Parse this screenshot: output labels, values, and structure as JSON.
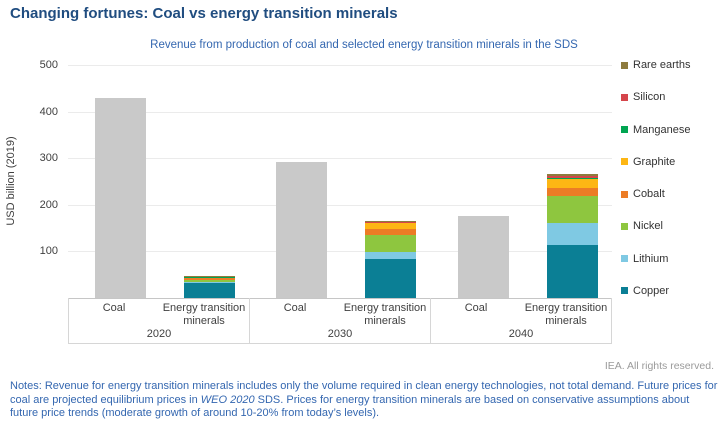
{
  "title": "Changing fortunes: Coal vs energy transition minerals",
  "subtitle": "Revenue from production of coal and selected energy transition minerals in the SDS",
  "y_axis": {
    "label": "USD billion (2019)",
    "ticks": [
      500,
      400,
      300,
      200,
      100
    ]
  },
  "chart_data": {
    "type": "bar",
    "stacked": true,
    "grid": true,
    "legend_position": "right",
    "ylabel": "USD billion (2019)",
    "ylim": [
      0,
      500
    ],
    "groups": [
      "2020",
      "2030",
      "2040"
    ],
    "bar_labels": [
      "Coal",
      "Energy transition minerals"
    ],
    "coal": {
      "name": "Coal",
      "color": "#c9c9c9",
      "values": [
        430,
        292,
        175
      ]
    },
    "series": [
      {
        "name": "Copper",
        "color": "#0b7f95",
        "values": [
          33,
          84,
          113
        ]
      },
      {
        "name": "Lithium",
        "color": "#7fc9e3",
        "values": [
          2,
          15,
          49
        ]
      },
      {
        "name": "Nickel",
        "color": "#8ec63f",
        "values": [
          4,
          36,
          58
        ]
      },
      {
        "name": "Cobalt",
        "color": "#ec7c25",
        "values": [
          3,
          13,
          17
        ]
      },
      {
        "name": "Graphite",
        "color": "#fdb614",
        "values": [
          2,
          13,
          18
        ]
      },
      {
        "name": "Manganese",
        "color": "#00a551",
        "values": [
          1,
          1,
          2
        ]
      },
      {
        "name": "Silicon",
        "color": "#d5454b",
        "values": [
          1,
          1,
          4
        ]
      },
      {
        "name": "Rare earths",
        "color": "#8e7b3e",
        "values": [
          2,
          3,
          5
        ]
      }
    ],
    "etm_totals": [
      48,
      166,
      266
    ],
    "legend_order_top_to_bottom": [
      "Rare earths",
      "Silicon",
      "Manganese",
      "Graphite",
      "Cobalt",
      "Nickel",
      "Lithium",
      "Copper"
    ]
  },
  "footer": {
    "rights": "IEA. All rights reserved."
  },
  "notes": {
    "prefix": "Notes: Revenue for energy transition minerals includes only the volume required in clean energy technologies, not total demand. Future prices for coal are projected equilibrium prices in ",
    "italic": "WEO 2020",
    "suffix": " SDS. Prices for energy transition minerals are based on conservative assumptions about future price trends (moderate growth of around 10-20% from today’s levels)."
  }
}
